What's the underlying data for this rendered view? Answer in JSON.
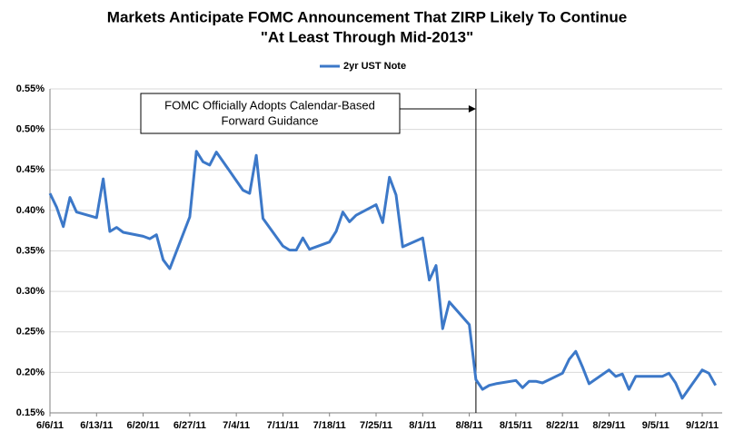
{
  "chart_data": {
    "type": "line",
    "title": [
      "Markets Anticipate FOMC Announcement That ZIRP Likely To Continue",
      "\"At Least Through Mid-2013\""
    ],
    "x": [
      "6/6/11",
      "6/7/11",
      "6/8/11",
      "6/9/11",
      "6/10/11",
      "6/13/11",
      "6/14/11",
      "6/15/11",
      "6/16/11",
      "6/17/11",
      "6/20/11",
      "6/21/11",
      "6/22/11",
      "6/23/11",
      "6/24/11",
      "6/27/11",
      "6/28/11",
      "6/29/11",
      "6/30/11",
      "7/1/11",
      "7/5/11",
      "7/6/11",
      "7/7/11",
      "7/8/11",
      "7/11/11",
      "7/12/11",
      "7/13/11",
      "7/14/11",
      "7/15/11",
      "7/18/11",
      "7/19/11",
      "7/20/11",
      "7/21/11",
      "7/22/11",
      "7/25/11",
      "7/26/11",
      "7/27/11",
      "7/28/11",
      "7/29/11",
      "8/1/11",
      "8/2/11",
      "8/3/11",
      "8/4/11",
      "8/5/11",
      "8/8/11",
      "8/9/11",
      "8/10/11",
      "8/11/11",
      "8/12/11",
      "8/15/11",
      "8/16/11",
      "8/17/11",
      "8/18/11",
      "8/19/11",
      "8/22/11",
      "8/23/11",
      "8/24/11",
      "8/25/11",
      "8/26/11",
      "8/29/11",
      "8/30/11",
      "8/31/11",
      "9/1/11",
      "9/2/11",
      "9/6/11",
      "9/7/11",
      "9/8/11",
      "9/9/11",
      "9/12/11",
      "9/13/11",
      "9/14/11"
    ],
    "series": [
      {
        "name": "2yr UST Note",
        "color": "#3c78c8",
        "values": [
          0.421,
          0.404,
          0.38,
          0.416,
          0.398,
          0.391,
          0.439,
          0.374,
          0.379,
          0.373,
          0.368,
          0.365,
          0.37,
          0.339,
          0.328,
          0.392,
          0.473,
          0.46,
          0.456,
          0.472,
          0.425,
          0.421,
          0.468,
          0.39,
          0.356,
          0.351,
          0.351,
          0.366,
          0.352,
          0.361,
          0.374,
          0.398,
          0.386,
          0.394,
          0.407,
          0.385,
          0.441,
          0.419,
          0.355,
          0.366,
          0.314,
          0.332,
          0.254,
          0.287,
          0.259,
          0.191,
          0.179,
          0.184,
          0.186,
          0.19,
          0.181,
          0.189,
          0.189,
          0.187,
          0.199,
          0.216,
          0.226,
          0.207,
          0.186,
          0.203,
          0.195,
          0.198,
          0.179,
          0.195,
          0.195,
          0.199,
          0.187,
          0.168,
          0.203,
          0.199,
          0.184
        ]
      }
    ],
    "xlim": [
      "6/6/11",
      "9/15/11"
    ],
    "xticks": [
      "6/6/11",
      "6/13/11",
      "6/20/11",
      "6/27/11",
      "7/4/11",
      "7/11/11",
      "7/18/11",
      "7/25/11",
      "8/1/11",
      "8/8/11",
      "8/15/11",
      "8/22/11",
      "8/29/11",
      "9/5/11",
      "9/12/11"
    ],
    "ylim": [
      0.15,
      0.55
    ],
    "yticks": [
      {
        "value": 0.15,
        "label": "0.15%"
      },
      {
        "value": 0.2,
        "label": "0.20%"
      },
      {
        "value": 0.25,
        "label": "0.25%"
      },
      {
        "value": 0.3,
        "label": "0.30%"
      },
      {
        "value": 0.35,
        "label": "0.35%"
      },
      {
        "value": 0.4,
        "label": "0.40%"
      },
      {
        "value": 0.45,
        "label": "0.45%"
      },
      {
        "value": 0.5,
        "label": "0.50%"
      },
      {
        "value": 0.55,
        "label": "0.55%"
      }
    ],
    "grid": true,
    "legend": "top",
    "annotation": {
      "text": [
        "FOMC Officially Adopts Calendar-Based",
        "Forward Guidance"
      ],
      "x": "8/9/11"
    }
  }
}
